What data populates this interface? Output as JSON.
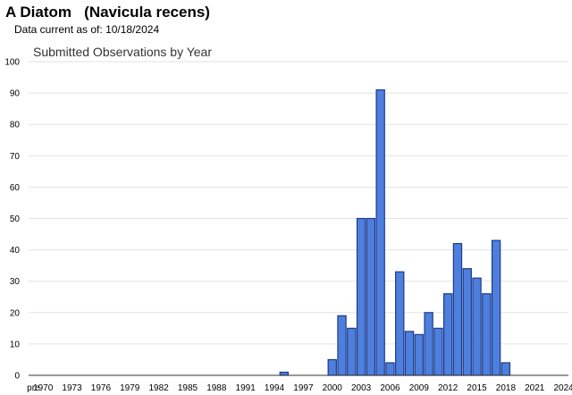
{
  "header": {
    "title": "A Diatom   (Navicula recens)",
    "subtitle_label": "Data current as of:",
    "subtitle_date": "10/18/2024"
  },
  "chart_data": {
    "type": "bar",
    "title": "Submitted Observations by Year",
    "xlabel": "",
    "ylabel": "",
    "ylim": [
      0,
      100
    ],
    "yticks": [
      0,
      10,
      20,
      30,
      40,
      50,
      60,
      70,
      80,
      90,
      100
    ],
    "grid": true,
    "legend": "none",
    "bar_color": "#4f7fdc",
    "bar_edge_color": "#1a3a8c",
    "categories": [
      "pre",
      "1970",
      "1971",
      "1972",
      "1973",
      "1974",
      "1975",
      "1976",
      "1977",
      "1978",
      "1979",
      "1980",
      "1981",
      "1982",
      "1983",
      "1984",
      "1985",
      "1986",
      "1987",
      "1988",
      "1989",
      "1990",
      "1991",
      "1992",
      "1993",
      "1994",
      "1995",
      "1996",
      "1997",
      "1998",
      "1999",
      "2000",
      "2001",
      "2002",
      "2003",
      "2004",
      "2005",
      "2006",
      "2007",
      "2008",
      "2009",
      "2010",
      "2011",
      "2012",
      "2013",
      "2014",
      "2015",
      "2016",
      "2017",
      "2018",
      "2019",
      "2020",
      "2021",
      "2022",
      "2023",
      "2024"
    ],
    "tick_labels": [
      "pre",
      "1970",
      "1973",
      "1976",
      "1979",
      "1982",
      "1985",
      "1988",
      "1991",
      "1994",
      "1997",
      "2000",
      "2003",
      "2006",
      "2009",
      "2012",
      "2015",
      "2018",
      "2021",
      "2024"
    ],
    "values": [
      0,
      0,
      0,
      0,
      0,
      0,
      0,
      0,
      0,
      0,
      0,
      0,
      0,
      0,
      0,
      0,
      0,
      0,
      0,
      0,
      0,
      0,
      0,
      0,
      0,
      0,
      1,
      0,
      0,
      0,
      0,
      5,
      19,
      15,
      50,
      50,
      91,
      4,
      33,
      14,
      13,
      20,
      15,
      26,
      42,
      34,
      31,
      26,
      43,
      4,
      0,
      0,
      0,
      0,
      0,
      0
    ]
  }
}
